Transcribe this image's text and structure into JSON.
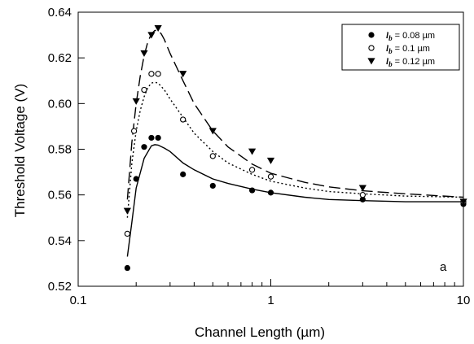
{
  "chart_data": {
    "type": "scatter",
    "xlabel": "Channel Length (µm)",
    "ylabel": "Threshold Voltage (V)",
    "xscale": "log",
    "xlim": [
      0.1,
      10
    ],
    "ylim": [
      0.52,
      0.64
    ],
    "x_ticks": [
      0.1,
      1,
      10
    ],
    "x_tick_labels": [
      "0.1",
      "1",
      "10"
    ],
    "y_ticks": [
      0.52,
      0.54,
      0.56,
      0.58,
      0.6,
      0.62,
      0.64
    ],
    "y_tick_labels": [
      "0.52",
      "0.54",
      "0.56",
      "0.58",
      "0.60",
      "0.62",
      "0.64"
    ],
    "panel_label": "a",
    "legend_position": "top-right",
    "grid": false,
    "series": [
      {
        "name": "lb = 0.08 µm",
        "legend_italic": "l",
        "legend_sub": "b",
        "legend_rest": " = 0.08 µm",
        "marker": "filled-circle",
        "line_style": "solid",
        "color": "#000000",
        "points_x": [
          0.18,
          0.2,
          0.22,
          0.24,
          0.26,
          0.35,
          0.5,
          0.8,
          1.0,
          3.0,
          10.0
        ],
        "points_y": [
          0.528,
          0.567,
          0.581,
          0.585,
          0.585,
          0.569,
          0.564,
          0.562,
          0.561,
          0.558,
          0.556
        ],
        "fit_x": [
          0.18,
          0.19,
          0.2,
          0.22,
          0.24,
          0.25,
          0.26,
          0.28,
          0.3,
          0.35,
          0.4,
          0.5,
          0.6,
          0.8,
          1.0,
          1.5,
          2.0,
          3.0,
          5.0,
          10.0
        ],
        "fit_y": [
          0.533,
          0.548,
          0.563,
          0.576,
          0.5815,
          0.582,
          0.5818,
          0.5805,
          0.579,
          0.574,
          0.571,
          0.567,
          0.565,
          0.5625,
          0.561,
          0.559,
          0.558,
          0.5575,
          0.557,
          0.557
        ]
      },
      {
        "name": "lb = 0.1 µm",
        "legend_italic": "l",
        "legend_sub": "b",
        "legend_rest": " = 0.1 µm",
        "marker": "open-circle",
        "line_style": "dotted",
        "color": "#000000",
        "points_x": [
          0.18,
          0.195,
          0.22,
          0.24,
          0.26,
          0.35,
          0.5,
          0.8,
          1.0,
          3.0,
          10.0
        ],
        "points_y": [
          0.543,
          0.588,
          0.606,
          0.613,
          0.613,
          0.593,
          0.577,
          0.571,
          0.568,
          0.56,
          0.557
        ],
        "fit_x": [
          0.18,
          0.19,
          0.2,
          0.21,
          0.22,
          0.23,
          0.24,
          0.25,
          0.26,
          0.28,
          0.3,
          0.35,
          0.4,
          0.5,
          0.6,
          0.8,
          1.0,
          1.5,
          2.0,
          3.0,
          5.0,
          10.0
        ],
        "fit_y": [
          0.55,
          0.574,
          0.588,
          0.597,
          0.603,
          0.607,
          0.609,
          0.6093,
          0.609,
          0.606,
          0.602,
          0.594,
          0.587,
          0.579,
          0.574,
          0.569,
          0.566,
          0.563,
          0.5615,
          0.5605,
          0.5595,
          0.559
        ]
      },
      {
        "name": "lb = 0.12 µm",
        "legend_italic": "l",
        "legend_sub": "b",
        "legend_rest": " = 0.12 µm",
        "marker": "filled-down-triangle",
        "line_style": "long-dash",
        "color": "#000000",
        "points_x": [
          0.18,
          0.2,
          0.22,
          0.24,
          0.26,
          0.35,
          0.5,
          0.8,
          1.0,
          3.0,
          10.0
        ],
        "points_y": [
          0.553,
          0.601,
          0.622,
          0.63,
          0.633,
          0.613,
          0.588,
          0.579,
          0.575,
          0.563,
          0.557
        ],
        "fit_x": [
          0.18,
          0.19,
          0.2,
          0.21,
          0.22,
          0.23,
          0.24,
          0.25,
          0.26,
          0.27,
          0.28,
          0.3,
          0.35,
          0.4,
          0.5,
          0.6,
          0.8,
          1.0,
          1.5,
          2.0,
          3.0,
          5.0,
          10.0
        ],
        "fit_y": [
          0.558,
          0.583,
          0.6,
          0.612,
          0.621,
          0.627,
          0.6305,
          0.632,
          0.632,
          0.6305,
          0.628,
          0.622,
          0.61,
          0.6,
          0.588,
          0.581,
          0.5735,
          0.5695,
          0.5655,
          0.5635,
          0.5618,
          0.5605,
          0.559
        ]
      }
    ]
  }
}
